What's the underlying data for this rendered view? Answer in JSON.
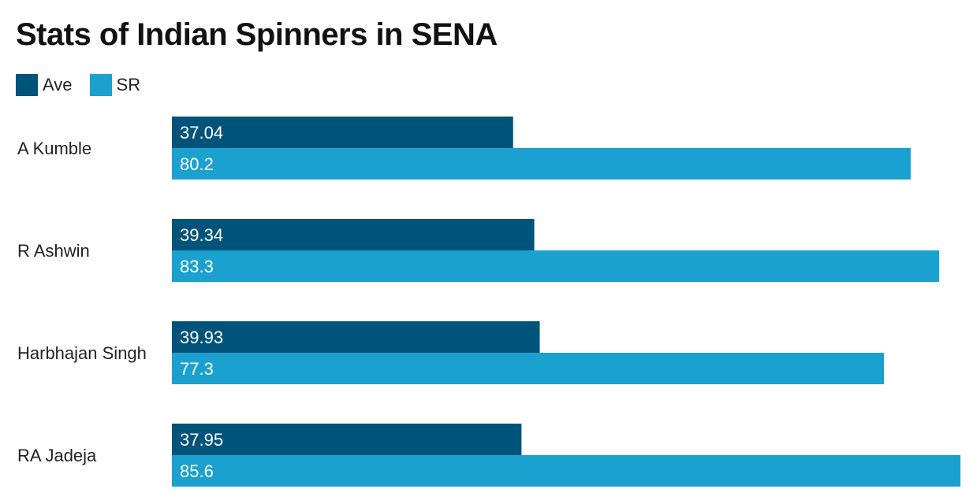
{
  "chart_data": {
    "type": "bar",
    "orientation": "horizontal",
    "title": "Stats of Indian Spinners in SENA",
    "categories": [
      "A Kumble",
      "R Ashwin",
      "Harbhajan Singh",
      "RA Jadeja"
    ],
    "series": [
      {
        "name": "Ave",
        "values": [
          37.04,
          39.34,
          39.93,
          37.95
        ],
        "color": "#00537a"
      },
      {
        "name": "SR",
        "values": [
          80.2,
          83.3,
          77.3,
          85.6
        ],
        "color": "#1ba1cf"
      }
    ],
    "xlim": [
      0,
      85.6
    ],
    "grid": false,
    "legend_position": "top-left",
    "data_labels": true
  }
}
